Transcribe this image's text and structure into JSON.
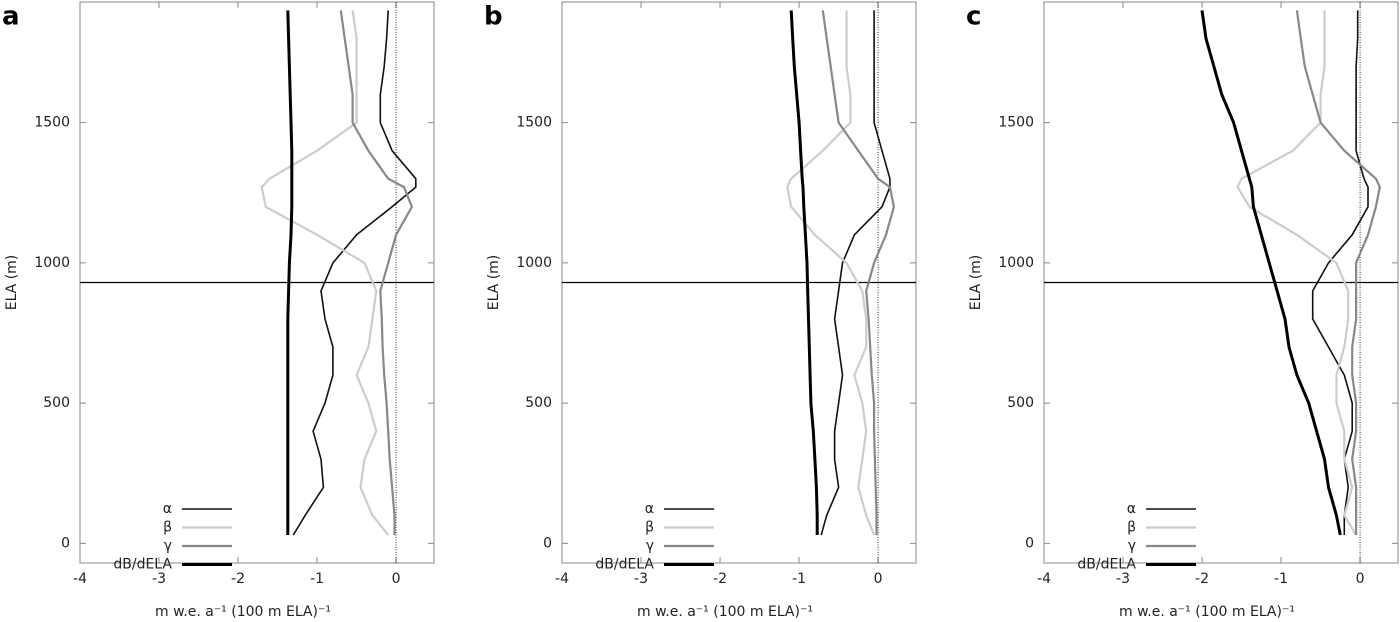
{
  "chart_data": [
    {
      "type": "line",
      "panel_label": "a",
      "ylabel": "ELA (m)",
      "xlabel": "m w.e. a⁻¹ (100 m ELA)⁻¹",
      "xlim": [
        -4,
        0.48
      ],
      "ylim": [
        -70,
        1930
      ],
      "xticks": [
        -4,
        -3,
        -2,
        -1,
        0
      ],
      "yticks": [
        0,
        500,
        1000,
        1500
      ],
      "hline": 930,
      "vline": 0,
      "legend": "lower left",
      "y": [
        30,
        100,
        200,
        300,
        400,
        500,
        600,
        700,
        800,
        900,
        1000,
        1100,
        1200,
        1270,
        1300,
        1400,
        1500,
        1600,
        1700,
        1800,
        1900
      ],
      "series": [
        {
          "name": "α",
          "color": "#111111",
          "line_width": 1.6,
          "values": [
            -1.3,
            -1.15,
            -0.92,
            -0.95,
            -1.05,
            -0.9,
            -0.8,
            -0.8,
            -0.9,
            -0.95,
            -0.8,
            -0.5,
            -0.05,
            0.25,
            0.25,
            -0.05,
            -0.2,
            -0.2,
            -0.15,
            -0.12,
            -0.1
          ]
        },
        {
          "name": "β",
          "color": "#cccccc",
          "line_width": 2.2,
          "values": [
            -0.1,
            -0.3,
            -0.45,
            -0.4,
            -0.25,
            -0.35,
            -0.5,
            -0.35,
            -0.3,
            -0.25,
            -0.4,
            -1.0,
            -1.65,
            -1.7,
            -1.6,
            -1.0,
            -0.5,
            -0.5,
            -0.5,
            -0.5,
            -0.55
          ]
        },
        {
          "name": "γ",
          "color": "#888888",
          "line_width": 2.2,
          "values": [
            -0.02,
            -0.02,
            -0.05,
            -0.08,
            -0.1,
            -0.12,
            -0.15,
            -0.17,
            -0.18,
            -0.2,
            -0.1,
            0.0,
            0.2,
            0.1,
            -0.1,
            -0.35,
            -0.55,
            -0.55,
            -0.6,
            -0.65,
            -0.7
          ]
        },
        {
          "name": "dB/dELA",
          "color": "#000000",
          "line_width": 3,
          "values": [
            -1.37,
            -1.37,
            -1.37,
            -1.37,
            -1.37,
            -1.37,
            -1.37,
            -1.37,
            -1.37,
            -1.36,
            -1.35,
            -1.33,
            -1.32,
            -1.32,
            -1.32,
            -1.32,
            -1.33,
            -1.34,
            -1.35,
            -1.36,
            -1.37
          ]
        }
      ]
    },
    {
      "type": "line",
      "panel_label": "b",
      "ylabel": "ELA (m)",
      "xlabel": "m w.e. a⁻¹ (100 m ELA)⁻¹",
      "xlim": [
        -4,
        0.48
      ],
      "ylim": [
        -70,
        1930
      ],
      "xticks": [
        -4,
        -3,
        -2,
        -1,
        0
      ],
      "yticks": [
        0,
        500,
        1000,
        1500
      ],
      "hline": 930,
      "vline": 0,
      "legend": "lower left",
      "y": [
        30,
        100,
        200,
        300,
        400,
        500,
        600,
        700,
        800,
        900,
        1000,
        1100,
        1200,
        1270,
        1300,
        1400,
        1500,
        1600,
        1700,
        1800,
        1900
      ],
      "series": [
        {
          "name": "α",
          "color": "#111111",
          "line_width": 1.6,
          "values": [
            -0.72,
            -0.65,
            -0.5,
            -0.55,
            -0.55,
            -0.5,
            -0.45,
            -0.5,
            -0.55,
            -0.5,
            -0.45,
            -0.3,
            0.05,
            0.15,
            0.15,
            0.05,
            -0.05,
            -0.05,
            -0.05,
            -0.05,
            -0.05
          ]
        },
        {
          "name": "β",
          "color": "#cccccc",
          "line_width": 2.2,
          "values": [
            -0.05,
            -0.15,
            -0.25,
            -0.2,
            -0.15,
            -0.2,
            -0.3,
            -0.15,
            -0.15,
            -0.2,
            -0.4,
            -0.8,
            -1.1,
            -1.15,
            -1.1,
            -0.7,
            -0.35,
            -0.35,
            -0.4,
            -0.4,
            -0.4
          ]
        },
        {
          "name": "γ",
          "color": "#888888",
          "line_width": 2.2,
          "values": [
            -0.02,
            -0.02,
            -0.03,
            -0.04,
            -0.05,
            -0.05,
            -0.08,
            -0.1,
            -0.12,
            -0.15,
            -0.05,
            0.1,
            0.2,
            0.15,
            0.0,
            -0.25,
            -0.5,
            -0.55,
            -0.6,
            -0.65,
            -0.7
          ]
        },
        {
          "name": "dB/dELA",
          "color": "#000000",
          "line_width": 3,
          "values": [
            -0.77,
            -0.77,
            -0.78,
            -0.8,
            -0.82,
            -0.85,
            -0.86,
            -0.87,
            -0.88,
            -0.89,
            -0.9,
            -0.92,
            -0.94,
            -0.95,
            -0.96,
            -0.98,
            -1.0,
            -1.03,
            -1.06,
            -1.08,
            -1.1
          ]
        }
      ]
    },
    {
      "type": "line",
      "panel_label": "c",
      "ylabel": "ELA (m)",
      "xlabel": "m w.e. a⁻¹ (100 m ELA)⁻¹",
      "xlim": [
        -4,
        0.48
      ],
      "ylim": [
        -70,
        1930
      ],
      "xticks": [
        -4,
        -3,
        -2,
        -1,
        0
      ],
      "yticks": [
        0,
        500,
        1000,
        1500
      ],
      "hline": 930,
      "vline": 0,
      "legend": "lower left",
      "y": [
        30,
        100,
        200,
        300,
        400,
        500,
        600,
        700,
        800,
        900,
        1000,
        1100,
        1200,
        1270,
        1300,
        1400,
        1500,
        1600,
        1700,
        1800,
        1900
      ],
      "series": [
        {
          "name": "α",
          "color": "#111111",
          "line_width": 1.6,
          "values": [
            -0.2,
            -0.2,
            -0.15,
            -0.2,
            -0.1,
            -0.1,
            -0.2,
            -0.4,
            -0.6,
            -0.6,
            -0.4,
            -0.1,
            0.1,
            0.1,
            0.05,
            -0.05,
            -0.05,
            -0.05,
            -0.05,
            -0.03,
            -0.03
          ]
        },
        {
          "name": "β",
          "color": "#cccccc",
          "line_width": 2.2,
          "values": [
            -0.05,
            -0.2,
            -0.1,
            -0.2,
            -0.2,
            -0.3,
            -0.3,
            -0.2,
            -0.15,
            -0.15,
            -0.3,
            -0.8,
            -1.4,
            -1.55,
            -1.5,
            -0.85,
            -0.5,
            -0.5,
            -0.45,
            -0.45,
            -0.45
          ]
        },
        {
          "name": "γ",
          "color": "#888888",
          "line_width": 2.2,
          "values": [
            -0.05,
            -0.05,
            -0.05,
            -0.1,
            -0.05,
            -0.05,
            -0.1,
            -0.1,
            -0.05,
            -0.05,
            -0.05,
            0.1,
            0.2,
            0.25,
            0.2,
            -0.2,
            -0.5,
            -0.6,
            -0.7,
            -0.75,
            -0.8
          ]
        },
        {
          "name": "dB/dELA",
          "color": "#000000",
          "line_width": 3,
          "values": [
            -0.25,
            -0.3,
            -0.4,
            -0.45,
            -0.55,
            -0.65,
            -0.8,
            -0.9,
            -0.95,
            -1.05,
            -1.15,
            -1.25,
            -1.35,
            -1.37,
            -1.4,
            -1.5,
            -1.6,
            -1.75,
            -1.85,
            -1.95,
            -2.0
          ]
        }
      ]
    }
  ]
}
